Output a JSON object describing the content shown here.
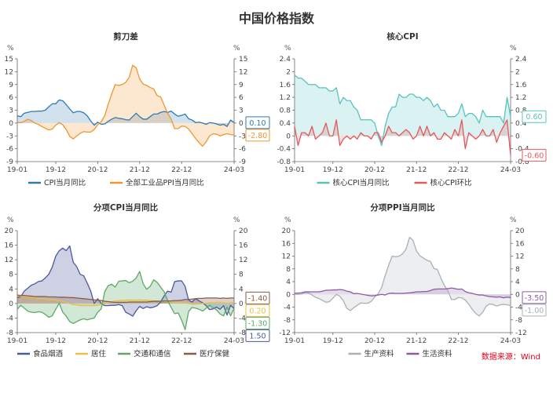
{
  "title": "中国价格指数",
  "source": "数据来源：Wind",
  "chart_data": [
    {
      "type": "area",
      "title": "剪刀差",
      "unit_left": "%",
      "unit_right": "%",
      "x_ticks": [
        "19-01",
        "19-12",
        "20-12",
        "21-12",
        "22-12",
        "24-03"
      ],
      "y_left": {
        "min": -9,
        "max": 15,
        "ticks": [
          -9,
          -6,
          -3,
          0,
          3,
          6,
          9,
          12,
          15
        ]
      },
      "y_right": {
        "min": -9,
        "max": 15,
        "ticks": [
          -9,
          -6,
          -3,
          0,
          3,
          6,
          9,
          12,
          15
        ]
      },
      "legend": [
        "CPI当月同比",
        "全部工业品PPI当月同比"
      ],
      "end_labels": [
        "0.10",
        "-2.80"
      ],
      "series": [
        {
          "name": "CPI当月同比",
          "color": "#2e7ab3",
          "axis": "left",
          "fill": true,
          "values": [
            1.7,
            1.5,
            2.3,
            2.5,
            2.7,
            2.7,
            2.8,
            2.8,
            3.0,
            3.8,
            4.5,
            4.5,
            5.4,
            5.2,
            4.3,
            3.3,
            2.4,
            2.7,
            2.7,
            2.4,
            1.7,
            0.5,
            -0.5,
            0.2,
            -0.3,
            -0.2,
            0.4,
            0.9,
            1.3,
            1.1,
            1.0,
            0.8,
            0.7,
            1.5,
            2.3,
            1.5,
            0.9,
            0.9,
            1.5,
            2.1,
            2.1,
            2.5,
            2.7,
            2.5,
            2.8,
            2.1,
            1.6,
            1.8,
            2.1,
            1.0,
            0.7,
            0.1,
            0.2,
            0,
            -0.3,
            0.1,
            0,
            -0.2,
            -0.5,
            -0.3,
            -0.8,
            0.7,
            0.1
          ]
        },
        {
          "name": "全部工业品PPI当月同比",
          "color": "#f0962e",
          "axis": "left",
          "fill": true,
          "values": [
            0.1,
            0.1,
            0.4,
            0.9,
            0.6,
            0,
            -0.3,
            -0.8,
            -1.2,
            -1.6,
            -1.4,
            -0.5,
            0.1,
            -0.4,
            -1.5,
            -3.1,
            -3.7,
            -3.0,
            -2.4,
            -2.0,
            -2.1,
            -2.1,
            -1.5,
            -0.4,
            0.3,
            1.7,
            4.4,
            6.8,
            9.0,
            8.8,
            9.0,
            9.5,
            10.7,
            13.5,
            12.9,
            10.3,
            9.1,
            8.8,
            8.3,
            8.0,
            6.4,
            6.1,
            4.2,
            2.3,
            0.9,
            -1.3,
            -1.3,
            -0.7,
            -0.8,
            -1.4,
            -2.5,
            -3.6,
            -4.6,
            -5.4,
            -4.4,
            -3.0,
            -2.5,
            -2.6,
            -3.0,
            -2.7,
            -2.5,
            -2.7,
            -2.8
          ]
        }
      ]
    },
    {
      "type": "area",
      "title": "核心CPI",
      "unit_left": "%",
      "unit_right": "%",
      "x_ticks": [
        "19-01",
        "19-12",
        "20-12",
        "21-12",
        "22-12",
        "24-03"
      ],
      "y_left": {
        "min": -0.8,
        "max": 2.4,
        "ticks": [
          -0.8,
          -0.4,
          0,
          0.4,
          0.8,
          1.2,
          1.6,
          2.0,
          2.4
        ]
      },
      "y_right": {
        "min": -0.8,
        "max": 2.4,
        "ticks": [
          -0.8,
          -0.4,
          0,
          0.4,
          0.8,
          1.2,
          1.6,
          2.0,
          2.4
        ]
      },
      "legend": [
        "核心CPI当月同比",
        "核心CPI环比"
      ],
      "end_labels": [
        "0.60",
        "-0.60"
      ],
      "series": [
        {
          "name": "核心CPI当月同比",
          "color": "#58c3bf",
          "axis": "left",
          "fill": true,
          "values": [
            1.9,
            1.8,
            1.8,
            1.7,
            1.6,
            1.6,
            1.6,
            1.5,
            1.5,
            1.5,
            1.4,
            1.4,
            1.5,
            1.0,
            1.2,
            1.1,
            1.1,
            0.9,
            0.8,
            0.5,
            0.5,
            0.5,
            0.5,
            0.4,
            0,
            -0.3,
            0.3,
            0.7,
            0.9,
            0.9,
            1.3,
            1.2,
            1.2,
            1.3,
            1.3,
            1.2,
            1.2,
            1.1,
            1.2,
            1.1,
            0.9,
            1.0,
            0.8,
            0.8,
            0.6,
            0.6,
            0.6,
            0.7,
            1.0,
            0.6,
            0.7,
            0.7,
            0.6,
            0.4,
            0.8,
            0.6,
            0.6,
            0.6,
            0.6,
            0.6,
            0.4,
            1.2,
            0.6
          ]
        },
        {
          "name": "核心CPI环比",
          "color": "#e05a5e",
          "axis": "left",
          "fill": true,
          "values": [
            0.3,
            -0.3,
            0.1,
            0.1,
            0,
            0.3,
            -0.1,
            0,
            0.1,
            0.4,
            0,
            0,
            0.5,
            -0.3,
            -0.1,
            0,
            -0.1,
            0,
            -0.1,
            0.1,
            0,
            0,
            -0.1,
            0.1,
            0.1,
            -0.2,
            0,
            0.3,
            0.1,
            0.1,
            0,
            0.1,
            0.2,
            0.1,
            -0.1,
            0,
            0.3,
            0,
            0.3,
            0,
            0.1,
            -0.1,
            -0.1,
            0.1,
            0,
            -0.1,
            0.2,
            0,
            0.5,
            -0.4,
            0.1,
            0,
            -0.1,
            0,
            0.2,
            0,
            0,
            0.2,
            -0.2,
            0.1,
            0.3,
            0.5,
            -0.6
          ]
        }
      ]
    },
    {
      "type": "area",
      "title": "分项CPI当月同比",
      "unit_left": "%",
      "unit_right": "%",
      "x_ticks": [
        "19-01",
        "19-12",
        "20-12",
        "21-12",
        "22-12",
        "24-03"
      ],
      "y_left": {
        "min": -8,
        "max": 20,
        "ticks": [
          -8,
          -4,
          0,
          4,
          8,
          12,
          16,
          20
        ]
      },
      "y_right": {
        "min": -8,
        "max": 20,
        "ticks": [
          -8,
          -4,
          0,
          4,
          8,
          12,
          16,
          20
        ]
      },
      "legend": [
        "食品烟酒",
        "居住",
        "交通和通信",
        "医疗保健"
      ],
      "end_labels": [
        "1.50",
        "0.20",
        "-1.30",
        "-1.40"
      ],
      "series": [
        {
          "name": "食品烟酒",
          "color": "#4b5a9b",
          "axis": "left",
          "fill": true,
          "values": [
            1.6,
            1.9,
            3.4,
            4.2,
            5.0,
            5.4,
            6.0,
            6.2,
            7.0,
            8.0,
            10.0,
            13.0,
            14.5,
            15.2,
            14.5,
            15.8,
            11.3,
            10.1,
            8.0,
            7.6,
            5.6,
            3.4,
            0.0,
            1.3,
            0.0,
            -0.6,
            -0.6,
            -0.5,
            -0.5,
            -0.3,
            -0.6,
            -2.4,
            -2.9,
            -3.5,
            -2.0,
            -0.8,
            -1.4,
            -0.9,
            -1.2,
            -1.0,
            -0.6,
            0.4,
            2.1,
            3.4,
            3.1,
            6.0,
            6.2,
            6.2,
            4.7,
            0.9,
            0.4,
            1.3,
            0.7,
            0.2,
            -0.6,
            -1.7,
            -1.5,
            -1.0,
            -1.6,
            -0.6,
            -3.2,
            -0.5,
            -1.4
          ]
        },
        {
          "name": "居住",
          "color": "#e9bf45",
          "axis": "left",
          "fill": true,
          "values": [
            2.2,
            2.0,
            2.0,
            1.9,
            1.6,
            1.6,
            1.4,
            1.3,
            1.2,
            1.0,
            1.0,
            0.9,
            0.8,
            0.6,
            0.3,
            0,
            -0.3,
            -0.4,
            -0.6,
            -0.6,
            -0.6,
            -0.6,
            -0.6,
            -0.5,
            -0.2,
            0,
            0.3,
            0.5,
            0.7,
            0.8,
            0.8,
            0.9,
            1.0,
            0.9,
            0.9,
            1.0,
            0.9,
            0.9,
            0.8,
            0.7,
            0.7,
            0.6,
            0.6,
            0.5,
            0.4,
            0.2,
            0.2,
            0.3,
            0.2,
            0,
            -0.2,
            -0.2,
            -0.1,
            0,
            0.1,
            0.2,
            0.2,
            0.3,
            0.3,
            0.2,
            0.1,
            0.2,
            0.2
          ]
        },
        {
          "name": "交通和通信",
          "color": "#5fa869",
          "axis": "left",
          "fill": true,
          "values": [
            -1.6,
            -0.5,
            -1.3,
            -2.1,
            -2.4,
            -2.5,
            -2.3,
            -2.4,
            -3.0,
            -3.8,
            -3.4,
            -1.6,
            0.1,
            -2.4,
            -3.5,
            -5.0,
            -5.5,
            -5.0,
            -4.5,
            -4.2,
            -4.5,
            -4.2,
            -4.0,
            -2.4,
            -1.5,
            3.2,
            4.9,
            5.3,
            4.5,
            6.1,
            6.2,
            6.3,
            5.7,
            6.1,
            7.0,
            8.8,
            5.4,
            3.9,
            4.7,
            6.5,
            5.8,
            4.5,
            3.2,
            0.8,
            -1.1,
            -2.8,
            -2.6,
            -4.6,
            -7.2,
            -2.2,
            -1.1,
            -1.3,
            -1.6,
            -2.1,
            -1.3,
            -0.5,
            -1.2,
            -1.8,
            -2.9,
            -3.4,
            -1.0,
            -3.4,
            -1.3
          ]
        },
        {
          "name": "医疗保健",
          "color": "#8a5a4a",
          "axis": "left",
          "fill": true,
          "values": [
            2.3,
            2.2,
            2.2,
            2.1,
            2.0,
            1.9,
            1.9,
            1.9,
            1.9,
            1.8,
            1.8,
            1.8,
            1.7,
            1.7,
            1.7,
            1.6,
            1.6,
            1.5,
            1.4,
            1.3,
            1.2,
            1.1,
            1.0,
            0.9,
            0.8,
            0.6,
            0.5,
            0.4,
            0.3,
            0.3,
            0.3,
            0.3,
            0.4,
            0.4,
            0.4,
            0.4,
            0.4,
            0.4,
            0.5,
            0.6,
            0.6,
            0.6,
            0.7,
            0.7,
            0.7,
            0.8,
            0.8,
            0.9,
            1.1,
            1.1,
            1.2,
            1.3,
            1.4,
            1.4,
            1.5,
            1.5,
            1.5,
            1.5,
            1.4,
            1.5,
            1.4,
            1.5,
            1.5
          ]
        }
      ]
    },
    {
      "type": "area",
      "title": "分项PPI当月同比",
      "unit_left": "%",
      "unit_right": "%",
      "x_ticks": [
        "19-01",
        "19-12",
        "20-12",
        "21-12",
        "22-12",
        "24-03"
      ],
      "y_left": {
        "min": -12,
        "max": 20,
        "ticks": [
          -12,
          -8,
          -4,
          0,
          4,
          8,
          12,
          16,
          20
        ]
      },
      "y_right": {
        "min": -12,
        "max": 20,
        "ticks": [
          -12,
          -8,
          -4,
          0,
          4,
          8,
          12,
          16,
          20
        ]
      },
      "legend": [
        "生产资料",
        "生活资料"
      ],
      "end_labels": [
        "-1.00",
        "-3.50"
      ],
      "series": [
        {
          "name": "生产资料",
          "color": "#aab0b5",
          "axis": "left",
          "fill": true,
          "values": [
            0,
            0,
            0.1,
            0.6,
            0.5,
            -0.2,
            -0.9,
            -1.3,
            -1.9,
            -2.5,
            -2.3,
            -1.2,
            0,
            -0.6,
            -2.0,
            -4.4,
            -5.1,
            -4.2,
            -3.4,
            -2.7,
            -2.8,
            -2.8,
            -2.2,
            -0.8,
            0.2,
            2.2,
            5.9,
            9.1,
            12.0,
            11.8,
            12.0,
            12.7,
            14.2,
            17.9,
            17.0,
            13.6,
            12.1,
            11.4,
            10.7,
            10.3,
            8.1,
            7.8,
            5.1,
            2.8,
            1.2,
            -1.6,
            -1.6,
            -1.0,
            -1.1,
            -1.8,
            -3.1,
            -4.7,
            -6.0,
            -6.8,
            -5.6,
            -3.7,
            -3.0,
            -3.2,
            -3.7,
            -3.3,
            -3.1,
            -3.3,
            -3.5
          ]
        },
        {
          "name": "生活资料",
          "color": "#8e5ba8",
          "axis": "left",
          "fill": true,
          "values": [
            0.4,
            0.4,
            0.5,
            0.8,
            0.8,
            0.8,
            0.8,
            0.8,
            1.0,
            1.3,
            1.3,
            1.4,
            1.4,
            1.5,
            1.4,
            1.0,
            0.8,
            0.2,
            0.3,
            0.1,
            -0.1,
            -0.3,
            -0.5,
            -0.4,
            -0.2,
            0,
            -0.2,
            0.3,
            0.4,
            0.3,
            0.3,
            0.3,
            0.4,
            0.5,
            0.6,
            0.8,
            0.8,
            0.9,
            0.9,
            1.2,
            1.6,
            1.7,
            1.7,
            1.7,
            1.8,
            2.0,
            1.8,
            1.6,
            1.7,
            0.9,
            0.5,
            0.3,
            0,
            -0.2,
            -0.2,
            -0.5,
            -0.7,
            -0.8,
            -0.9,
            -0.8,
            -1.1,
            -0.9,
            -1.0
          ]
        }
      ]
    }
  ]
}
